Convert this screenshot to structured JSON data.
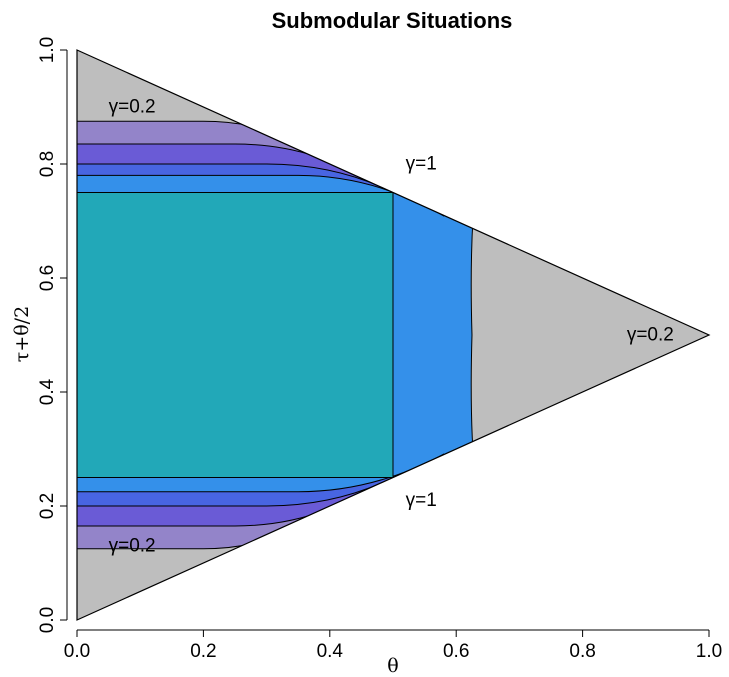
{
  "chart_data": {
    "type": "contour",
    "title": "Submodular Situations",
    "xlabel": "θ",
    "ylabel": "τ+θ/2",
    "xlim": [
      0,
      1
    ],
    "ylim": [
      0,
      1
    ],
    "x_ticks": [
      "0.0",
      "0.2",
      "0.4",
      "0.6",
      "0.8",
      "1.0"
    ],
    "y_ticks": [
      "0.0",
      "0.2",
      "0.4",
      "0.6",
      "0.8",
      "1.0"
    ],
    "grid": false,
    "region_vertices": [
      [
        0,
        0
      ],
      [
        1,
        0.5
      ],
      [
        0,
        1
      ]
    ],
    "plateau": {
      "x": [
        0,
        0.5
      ],
      "y": [
        0.25,
        0.75
      ],
      "level": "γ=1"
    },
    "contour_levels": [
      0.2,
      0.4,
      0.6,
      0.8,
      1
    ],
    "level_colors": [
      "#bebebe",
      "#9384c9",
      "#6a5bd6",
      "#4865e2",
      "#3490ea",
      "#22a8b8"
    ],
    "annotations": [
      {
        "text": "γ=0.2",
        "x": 0.05,
        "y": 0.89
      },
      {
        "text": "γ=1",
        "x": 0.52,
        "y": 0.79
      },
      {
        "text": "γ=0.2",
        "x": 0.87,
        "y": 0.49
      },
      {
        "text": "γ=1",
        "x": 0.52,
        "y": 0.2
      },
      {
        "text": "γ=0.2",
        "x": 0.05,
        "y": 0.12
      }
    ]
  }
}
